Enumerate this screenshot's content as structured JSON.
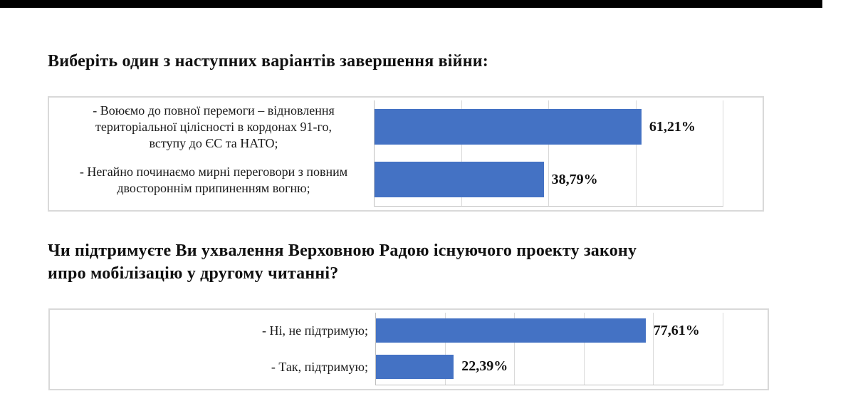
{
  "page": {
    "background": "#ffffff",
    "top_bar_color": "#000000"
  },
  "sections": [
    {
      "heading": "Виберіть один з наступних варіантів завершення війни:"
    },
    {
      "heading_line1": "Чи підтримуєте Ви ухвалення Верховною Радою існуючого проекту закону",
      "heading_line2": "ипро мобілізацію у другому читанні?"
    }
  ],
  "chart_data": [
    {
      "type": "bar",
      "orientation": "horizontal",
      "title": "Виберіть один з наступних варіантів завершення війни:",
      "categories": [
        "- Воюємо до повної перемоги – відновлення\nтериторіальної цілісності в кордонах 91-го,\nвступу до ЄС та НАТО;",
        "- Негайно починаємо мирні переговори з повним\nдвостороннім припиненням вогню;"
      ],
      "values": [
        61.21,
        38.79
      ],
      "value_labels": [
        "61,21%",
        "38,79%"
      ],
      "xlabel": "",
      "ylabel": "",
      "xlim": [
        0,
        80
      ],
      "grid_step": 20,
      "grid": true,
      "legend": false,
      "bar_color": "#4472C4",
      "label_align": "center"
    },
    {
      "type": "bar",
      "orientation": "horizontal",
      "title": "Чи підтримуєте Ви ухвалення Верховною Радою існуючого проекту закону ипро мобілізацію у другому читанні?",
      "categories": [
        "- Ні, не підтримую;",
        "- Так, підтримую;"
      ],
      "values": [
        77.61,
        22.39
      ],
      "value_labels": [
        "77,61%",
        "22,39%"
      ],
      "xlabel": "",
      "ylabel": "",
      "xlim": [
        0,
        100
      ],
      "grid_step": 20,
      "grid": true,
      "legend": false,
      "bar_color": "#4472C4",
      "label_align": "right"
    }
  ]
}
